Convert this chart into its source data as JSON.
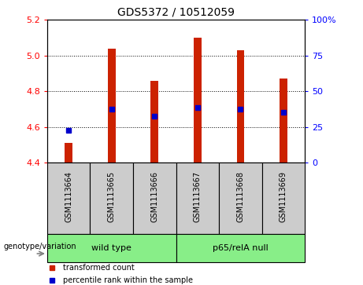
{
  "title": "GDS5372 / 10512059",
  "samples": [
    "GSM1113664",
    "GSM1113665",
    "GSM1113666",
    "GSM1113667",
    "GSM1113668",
    "GSM1113669"
  ],
  "bar_tops": [
    4.51,
    5.04,
    4.86,
    5.1,
    5.03,
    4.87
  ],
  "bar_bottom": 4.4,
  "blue_markers": [
    4.58,
    4.7,
    4.66,
    4.71,
    4.7,
    4.68
  ],
  "ylim_left": [
    4.4,
    5.2
  ],
  "ylim_right": [
    0,
    100
  ],
  "yticks_left": [
    4.4,
    4.6,
    4.8,
    5.0,
    5.2
  ],
  "yticks_right": [
    0,
    25,
    50,
    75,
    100
  ],
  "bar_color": "#cc2200",
  "marker_color": "#0000cc",
  "group1_label": "wild type",
  "group2_label": "p65/relA null",
  "group_color": "#88ee88",
  "sample_box_color": "#cccccc",
  "legend_label_red": "transformed count",
  "legend_label_blue": "percentile rank within the sample",
  "genotype_label": "genotype/variation",
  "right_ytick_labels": [
    "0",
    "25",
    "50",
    "75",
    "100%"
  ],
  "bar_width": 0.18
}
